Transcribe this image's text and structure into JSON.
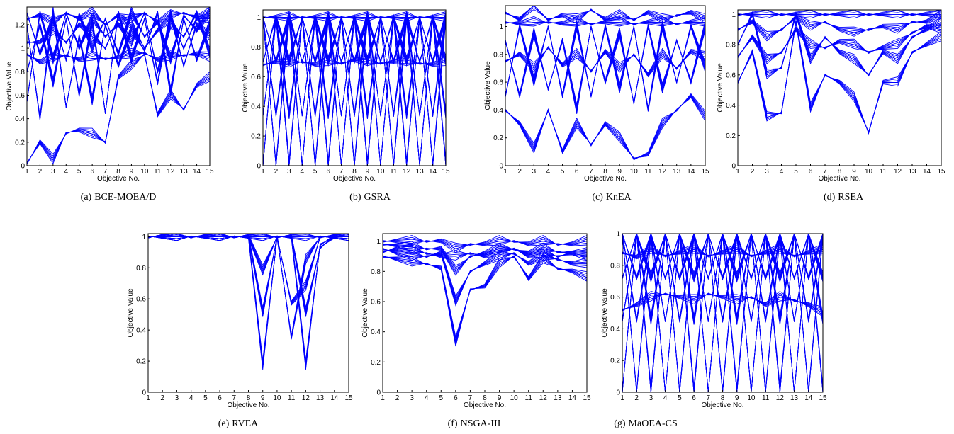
{
  "figure": {
    "panels": [
      {
        "label": "(a)",
        "caption": "BCE-MOEA/D"
      },
      {
        "label": "(b)",
        "caption": "GSRA"
      },
      {
        "label": "(c)",
        "caption": "KnEA"
      },
      {
        "label": "(d)",
        "caption": "RSEA"
      },
      {
        "label": "(e)",
        "caption": "RVEA"
      },
      {
        "label": "(f)",
        "caption": "NSGA-III"
      },
      {
        "label": "(g)",
        "caption": "MaOEA-CS"
      }
    ]
  },
  "colors": {
    "line": "#0000ff",
    "axis": "#000000",
    "background": "#ffffff"
  },
  "chart_data": [
    {
      "type": "line",
      "panel": "(a) BCE-MOEA/D",
      "xlabel": "Objective No.",
      "ylabel": "Objective Value",
      "xlim": [
        1,
        15
      ],
      "ylim": [
        0,
        1.35
      ],
      "x_ticks": [
        1,
        2,
        3,
        4,
        5,
        6,
        7,
        8,
        9,
        10,
        11,
        12,
        13,
        14,
        15
      ],
      "y_ticks": [
        0,
        0.2,
        0.4,
        0.6,
        0.8,
        1,
        1.2
      ],
      "series": [
        {
          "values": [
            0.02,
            0.2,
            0.05,
            0.28,
            0.3,
            0.27,
            0.2,
            0.75,
            0.85,
            0.95,
            0.43,
            0.6,
            0.48,
            0.68,
            0.75
          ]
        },
        {
          "values": [
            1.3,
            0.95,
            1.25,
            0.9,
            1.28,
            1.0,
            1.25,
            0.95,
            1.3,
            1.1,
            1.22,
            0.9,
            1.28,
            1.15,
            1.3
          ]
        },
        {
          "values": [
            0.8,
            1.2,
            0.7,
            1.25,
            0.6,
            1.22,
            0.45,
            1.3,
            0.9,
            1.25,
            0.7,
            1.28,
            0.85,
            1.2,
            1.1
          ]
        },
        {
          "values": [
            1.2,
            0.4,
            1.3,
            0.5,
            1.1,
            0.55,
            1.2,
            0.85,
            1.15,
            0.98,
            1.3,
            0.62,
            1.25,
            0.9,
            1.2
          ]
        },
        {
          "values": [
            0.55,
            1.3,
            0.9,
            1.3,
            1.0,
            1.25,
            1.1,
            1.2,
            1.05,
            1.3,
            0.8,
            1.2,
            1.1,
            1.3,
            0.95
          ]
        },
        {
          "values": [
            1.05,
            1.05,
            1.15,
            1.05,
            1.2,
            1.1,
            1.0,
            1.25,
            1.2,
            1.0,
            1.15,
            1.25,
            1.0,
            1.25,
            1.25
          ]
        },
        {
          "values": [
            0.95,
            0.88,
            0.92,
            0.94,
            0.9,
            0.93,
            0.91,
            0.92,
            0.95,
            0.96,
            0.9,
            0.93,
            0.94,
            0.95,
            0.92
          ]
        },
        {
          "values": [
            1.25,
            1.28,
            1.22,
            1.3,
            1.25,
            1.3,
            1.2,
            1.28,
            1.25,
            1.3,
            1.22,
            1.28,
            1.3,
            1.26,
            1.3
          ]
        }
      ]
    },
    {
      "type": "line",
      "panel": "(b) GSRA",
      "xlabel": "Objective No.",
      "ylabel": "Objective Value",
      "xlim": [
        1,
        15
      ],
      "ylim": [
        0,
        1.05
      ],
      "x_ticks": [
        1,
        2,
        3,
        4,
        5,
        6,
        7,
        8,
        9,
        10,
        11,
        12,
        13,
        14,
        15
      ],
      "y_ticks": [
        0,
        0.2,
        0.4,
        0.6,
        0.8,
        1
      ],
      "series": [
        {
          "values": [
            0.0,
            1.0,
            0.0,
            1.0,
            0.0,
            1.0,
            0.0,
            1.0,
            0.0,
            1.0,
            0.0,
            1.0,
            0.0,
            1.0,
            0.0
          ]
        },
        {
          "values": [
            1.0,
            0.0,
            1.0,
            0.0,
            1.0,
            0.0,
            1.0,
            0.0,
            1.0,
            0.0,
            1.0,
            0.0,
            1.0,
            0.0,
            1.0
          ]
        },
        {
          "values": [
            1.0,
            0.34,
            1.0,
            0.34,
            1.0,
            0.34,
            1.0,
            0.34,
            1.0,
            0.34,
            1.0,
            0.34,
            1.0,
            0.34,
            1.0
          ]
        },
        {
          "values": [
            0.34,
            1.0,
            0.34,
            1.0,
            0.34,
            1.0,
            0.34,
            1.0,
            0.34,
            1.0,
            0.34,
            1.0,
            0.34,
            1.0,
            0.34
          ]
        },
        {
          "values": [
            1.0,
            0.7,
            1.0,
            0.7,
            1.0,
            0.7,
            1.0,
            0.7,
            1.0,
            0.7,
            1.0,
            0.7,
            1.0,
            0.7,
            1.0
          ]
        },
        {
          "values": [
            0.7,
            1.0,
            0.7,
            1.0,
            0.7,
            1.0,
            0.7,
            1.0,
            0.7,
            1.0,
            0.7,
            1.0,
            0.7,
            1.0,
            0.7
          ]
        },
        {
          "values": [
            0.68,
            0.7,
            0.69,
            0.7,
            0.68,
            0.7,
            0.69,
            0.71,
            0.7,
            0.69,
            0.7,
            0.7,
            0.69,
            0.68,
            0.7
          ]
        },
        {
          "values": [
            1.0,
            1.0,
            1.0,
            1.0,
            1.0,
            1.0,
            1.0,
            1.0,
            1.0,
            1.0,
            1.0,
            1.0,
            1.0,
            1.0,
            1.0
          ]
        }
      ]
    },
    {
      "type": "line",
      "panel": "(c) KnEA",
      "xlabel": "Objective No.",
      "ylabel": "Objective Value",
      "xlim": [
        1,
        15
      ],
      "ylim": [
        0,
        1.15
      ],
      "x_ticks": [
        1,
        2,
        3,
        4,
        5,
        6,
        7,
        8,
        9,
        10,
        11,
        12,
        13,
        14,
        15
      ],
      "y_ticks": [
        0,
        0.2,
        0.4,
        0.6,
        0.8,
        1
      ],
      "series": [
        {
          "values": [
            0.4,
            0.3,
            0.12,
            0.4,
            0.1,
            0.3,
            0.15,
            0.3,
            0.2,
            0.05,
            0.08,
            0.3,
            0.4,
            0.5,
            0.35
          ]
        },
        {
          "values": [
            1.1,
            1.05,
            1.15,
            1.05,
            1.08,
            1.05,
            1.12,
            1.05,
            1.08,
            1.05,
            1.1,
            1.05,
            1.08,
            1.1,
            1.05
          ]
        },
        {
          "values": [
            0.9,
            0.5,
            0.95,
            0.55,
            0.9,
            0.4,
            1.0,
            0.6,
            0.95,
            0.45,
            1.0,
            0.55,
            0.9,
            0.6,
            1.0
          ]
        },
        {
          "values": [
            0.5,
            1.0,
            0.6,
            1.0,
            0.5,
            1.0,
            0.5,
            1.0,
            0.55,
            1.0,
            0.4,
            1.0,
            0.6,
            1.0,
            0.7
          ]
        },
        {
          "values": [
            0.75,
            0.8,
            0.7,
            0.85,
            0.72,
            0.8,
            0.68,
            0.82,
            0.7,
            0.8,
            0.65,
            0.8,
            0.7,
            0.82,
            0.78
          ]
        },
        {
          "values": [
            1.03,
            1.02,
            1.03,
            1.03,
            1.02,
            1.03,
            1.02,
            1.03,
            1.03,
            1.02,
            1.03,
            1.03,
            1.02,
            1.03,
            1.03
          ]
        }
      ]
    },
    {
      "type": "line",
      "panel": "(d) RSEA",
      "xlabel": "Objective No.",
      "ylabel": "Objective Value",
      "xlim": [
        1,
        15
      ],
      "ylim": [
        0,
        1.03
      ],
      "x_ticks": [
        1,
        2,
        3,
        4,
        5,
        6,
        7,
        8,
        9,
        10,
        11,
        12,
        13,
        14,
        15
      ],
      "y_ticks": [
        0,
        0.2,
        0.4,
        0.6,
        0.8,
        1
      ],
      "series": [
        {
          "values": [
            0.55,
            0.75,
            0.32,
            0.35,
            0.95,
            0.38,
            0.6,
            0.55,
            0.45,
            0.22,
            0.55,
            0.55,
            0.75,
            0.8,
            0.85
          ]
        },
        {
          "values": [
            0.8,
            1.0,
            0.6,
            0.65,
            1.0,
            0.7,
            0.85,
            0.75,
            0.7,
            0.6,
            0.75,
            0.7,
            0.85,
            0.9,
            0.95
          ]
        },
        {
          "values": [
            0.9,
            0.95,
            0.85,
            0.9,
            0.98,
            0.92,
            0.95,
            0.9,
            0.88,
            0.9,
            0.92,
            0.9,
            0.95,
            0.95,
            1.0
          ]
        },
        {
          "values": [
            1.0,
            1.0,
            1.0,
            1.0,
            1.0,
            1.0,
            1.0,
            1.0,
            1.0,
            1.0,
            1.0,
            1.0,
            1.0,
            1.0,
            1.0
          ]
        },
        {
          "values": [
            0.72,
            0.85,
            0.7,
            0.75,
            0.9,
            0.8,
            0.78,
            0.82,
            0.8,
            0.75,
            0.78,
            0.8,
            0.88,
            0.92,
            0.9
          ]
        }
      ]
    },
    {
      "type": "line",
      "panel": "(e) RVEA",
      "xlabel": "Objective No.",
      "ylabel": "Objective Value",
      "xlim": [
        1,
        15
      ],
      "ylim": [
        0,
        1.02
      ],
      "x_ticks": [
        1,
        2,
        3,
        4,
        5,
        6,
        7,
        8,
        9,
        10,
        11,
        12,
        13,
        14,
        15
      ],
      "y_ticks": [
        0,
        0.2,
        0.4,
        0.6,
        0.8,
        1
      ],
      "series": [
        {
          "values": [
            1.0,
            1.0,
            1.0,
            1.0,
            1.0,
            1.0,
            1.0,
            1.0,
            1.0,
            1.0,
            1.0,
            1.0,
            1.0,
            1.0,
            1.0
          ]
        },
        {
          "values": [
            1.0,
            1.0,
            1.0,
            1.0,
            1.0,
            1.0,
            1.0,
            1.0,
            0.17,
            1.0,
            1.0,
            0.17,
            0.95,
            1.0,
            1.0
          ]
        },
        {
          "values": [
            1.0,
            1.0,
            1.0,
            1.0,
            1.0,
            1.0,
            1.0,
            1.0,
            0.78,
            1.0,
            0.35,
            0.85,
            1.0,
            1.0,
            1.0
          ]
        },
        {
          "values": [
            1.0,
            1.0,
            1.0,
            1.0,
            1.0,
            1.0,
            1.0,
            1.0,
            0.51,
            1.0,
            0.57,
            0.68,
            1.0,
            1.0,
            1.0
          ]
        },
        {
          "values": [
            1.0,
            1.0,
            1.0,
            1.0,
            1.0,
            1.0,
            1.0,
            1.0,
            1.0,
            1.0,
            1.0,
            0.51,
            0.93,
            1.0,
            1.0
          ]
        }
      ]
    },
    {
      "type": "line",
      "panel": "(f) NSGA-III",
      "xlabel": "Objective No.",
      "ylabel": "Objective Value",
      "xlim": [
        1,
        15
      ],
      "ylim": [
        0,
        1.05
      ],
      "x_ticks": [
        1,
        2,
        3,
        4,
        5,
        6,
        7,
        8,
        9,
        10,
        11,
        12,
        13,
        14,
        15
      ],
      "y_ticks": [
        0,
        0.2,
        0.4,
        0.6,
        0.8,
        1
      ],
      "series": [
        {
          "values": [
            0.9,
            0.88,
            0.86,
            0.85,
            0.82,
            0.33,
            0.68,
            0.7,
            0.85,
            0.9,
            0.75,
            0.88,
            0.82,
            0.8,
            0.76
          ]
        },
        {
          "values": [
            0.95,
            0.92,
            0.9,
            0.9,
            0.92,
            0.6,
            0.8,
            0.85,
            0.9,
            0.92,
            0.85,
            0.9,
            0.88,
            0.85,
            0.85
          ]
        },
        {
          "values": [
            0.98,
            0.97,
            0.96,
            0.95,
            0.95,
            0.8,
            0.9,
            0.92,
            0.95,
            0.95,
            0.92,
            0.95,
            0.93,
            0.92,
            0.92
          ]
        },
        {
          "values": [
            1.0,
            1.0,
            1.0,
            1.0,
            1.0,
            0.95,
            0.98,
            0.98,
            1.0,
            1.0,
            0.98,
            1.0,
            0.98,
            0.98,
            1.0
          ]
        },
        {
          "values": [
            0.93,
            0.95,
            0.94,
            0.92,
            0.9,
            0.9,
            0.92,
            0.9,
            0.93,
            0.95,
            0.9,
            0.92,
            0.9,
            0.92,
            0.9
          ]
        }
      ]
    },
    {
      "type": "line",
      "panel": "(g) MaOEA-CS",
      "xlabel": "Objective No.",
      "ylabel": "Objective Value",
      "xlim": [
        1,
        15
      ],
      "ylim": [
        0,
        1.0
      ],
      "x_ticks": [
        1,
        2,
        3,
        4,
        5,
        6,
        7,
        8,
        9,
        10,
        11,
        12,
        13,
        14,
        15
      ],
      "y_ticks": [
        0,
        0.2,
        0.4,
        0.6,
        0.8,
        1
      ],
      "series": [
        {
          "values": [
            0.0,
            1.0,
            0.0,
            1.0,
            0.0,
            1.0,
            0.0,
            1.0,
            0.0,
            1.0,
            0.0,
            1.0,
            0.0,
            1.0,
            0.0
          ]
        },
        {
          "values": [
            1.0,
            0.0,
            1.0,
            0.0,
            1.0,
            0.0,
            1.0,
            0.0,
            1.0,
            0.0,
            1.0,
            0.0,
            1.0,
            0.0,
            1.0
          ]
        },
        {
          "values": [
            1.0,
            0.45,
            1.0,
            0.45,
            1.0,
            0.45,
            1.0,
            0.45,
            1.0,
            0.45,
            1.0,
            0.45,
            1.0,
            0.45,
            1.0
          ]
        },
        {
          "values": [
            0.45,
            1.0,
            0.45,
            1.0,
            0.45,
            1.0,
            0.45,
            1.0,
            0.45,
            1.0,
            0.45,
            1.0,
            0.45,
            1.0,
            0.45
          ]
        },
        {
          "values": [
            1.0,
            0.72,
            1.0,
            0.72,
            1.0,
            0.72,
            1.0,
            0.72,
            1.0,
            0.72,
            1.0,
            0.72,
            1.0,
            0.72,
            1.0
          ]
        },
        {
          "values": [
            0.72,
            1.0,
            0.72,
            1.0,
            0.72,
            1.0,
            0.72,
            1.0,
            0.72,
            1.0,
            0.72,
            1.0,
            0.72,
            1.0,
            0.72
          ]
        },
        {
          "values": [
            0.52,
            0.55,
            0.6,
            0.62,
            0.6,
            0.58,
            0.62,
            0.6,
            0.58,
            0.6,
            0.55,
            0.6,
            0.58,
            0.55,
            0.5
          ]
        },
        {
          "values": [
            0.88,
            0.85,
            0.9,
            0.86,
            0.88,
            0.9,
            0.86,
            0.88,
            0.9,
            0.86,
            0.88,
            0.9,
            0.86,
            0.88,
            0.9
          ]
        }
      ]
    }
  ]
}
